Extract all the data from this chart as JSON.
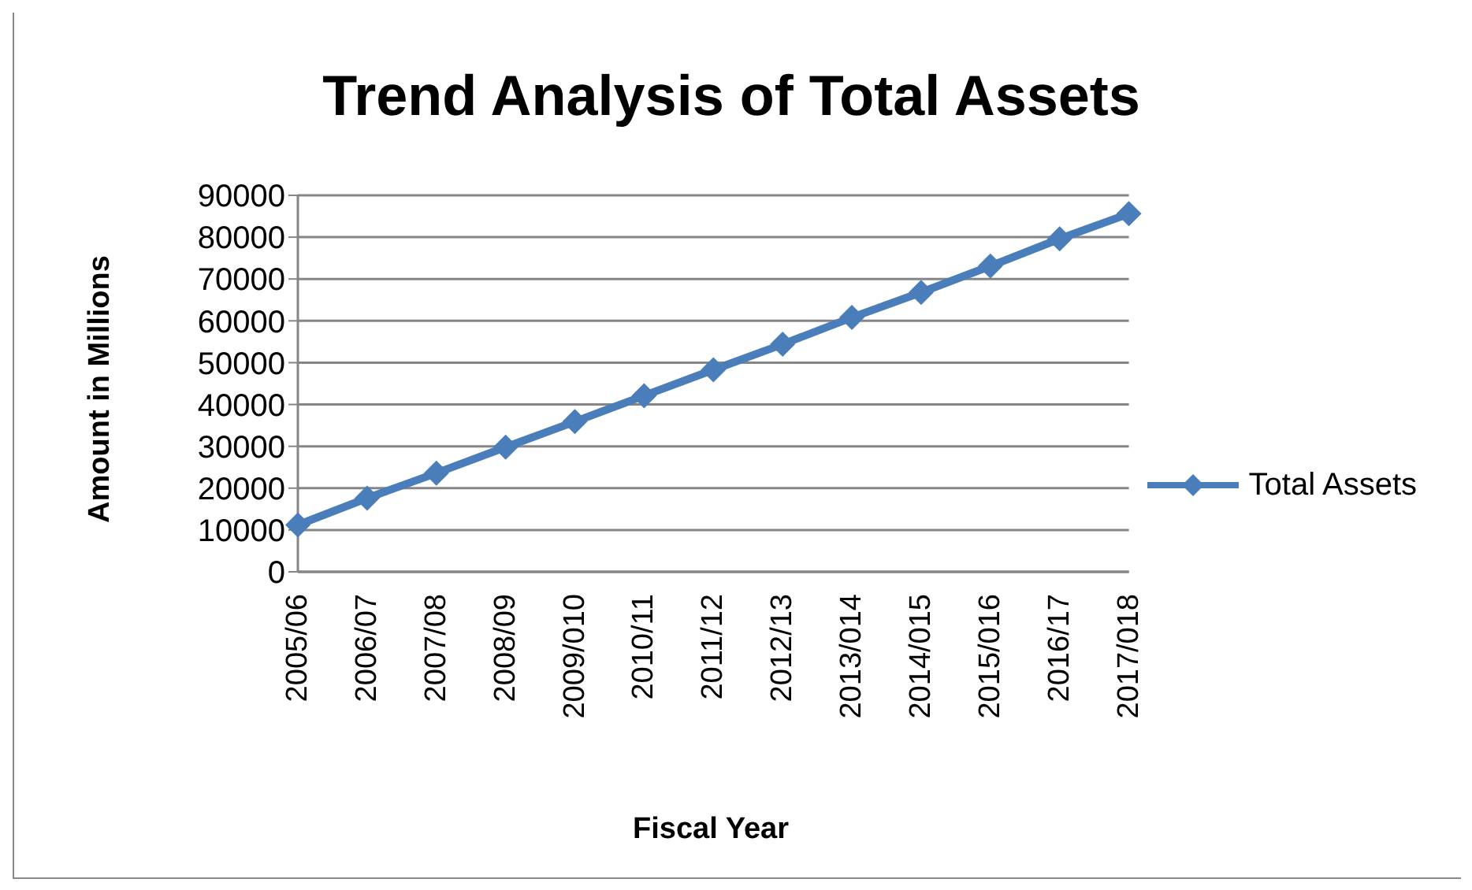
{
  "chart_data": {
    "type": "line",
    "title": "Trend Analysis of Total Assets",
    "xlabel": "Fiscal Year",
    "ylabel": "Amount in Millions",
    "categories": [
      "2005/06",
      "2006/07",
      "2007/08",
      "2008/09",
      "2009/010",
      "2010/11",
      "2011/12",
      "2012/13",
      "2013/014",
      "2014/015",
      "2015/016",
      "2016/17",
      "2017/018"
    ],
    "series": [
      {
        "name": "Total Assets",
        "color": "#4a7ebb",
        "values": [
          11200,
          17600,
          23600,
          29800,
          35900,
          42100,
          48300,
          54400,
          60800,
          66800,
          73100,
          79600,
          85600
        ]
      }
    ],
    "ylim": [
      0,
      90000
    ],
    "yticks": [
      0,
      10000,
      20000,
      30000,
      40000,
      50000,
      60000,
      70000,
      80000,
      90000
    ],
    "grid": "y",
    "legend": "right",
    "marker": "diamond",
    "line_style": "solid"
  }
}
